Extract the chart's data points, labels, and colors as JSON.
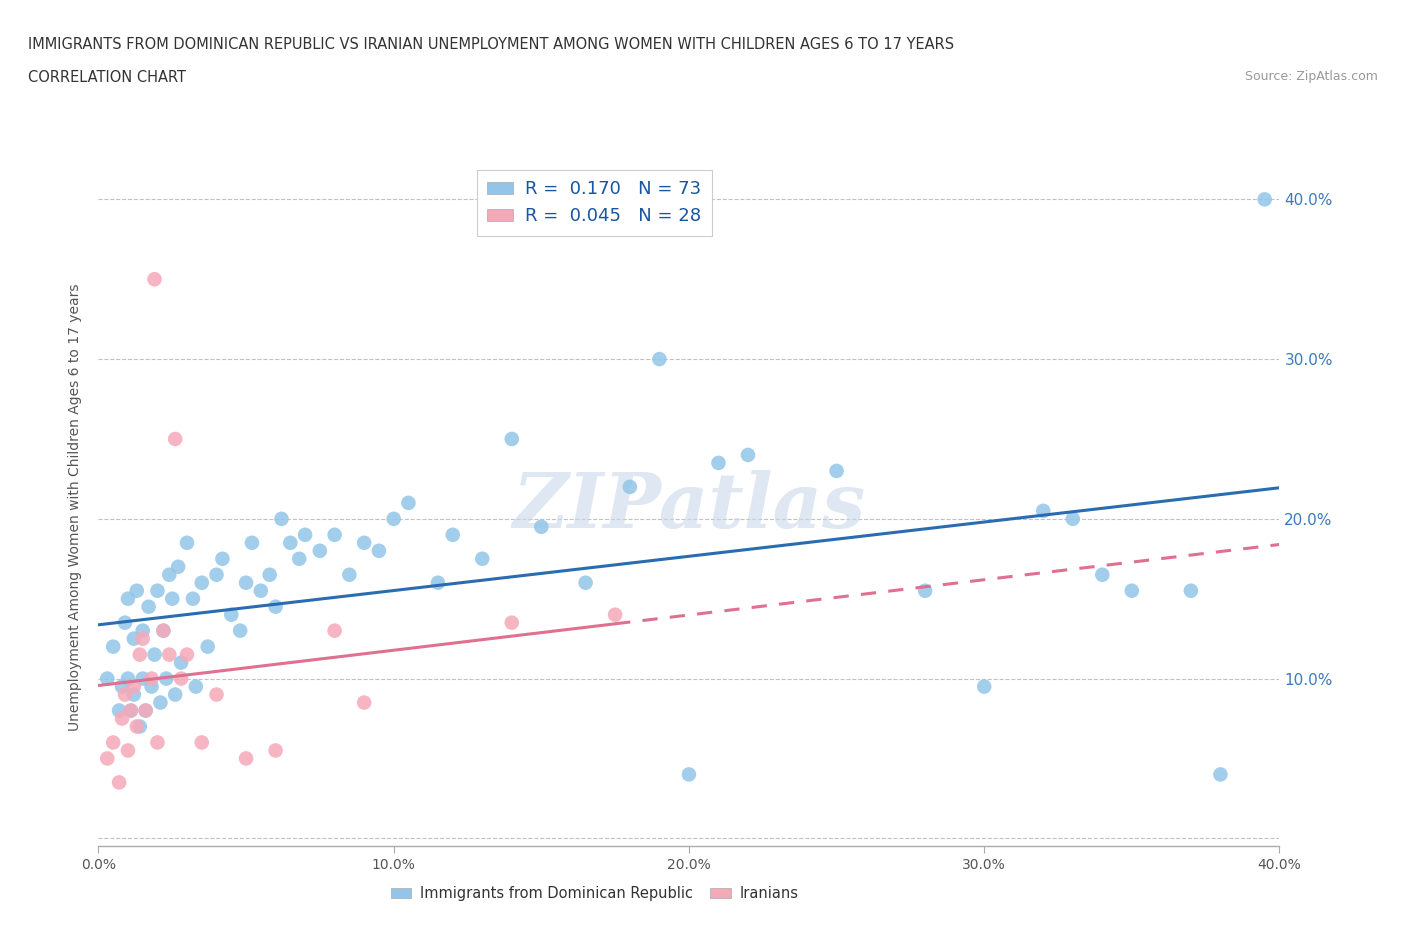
{
  "title_line1": "IMMIGRANTS FROM DOMINICAN REPUBLIC VS IRANIAN UNEMPLOYMENT AMONG WOMEN WITH CHILDREN AGES 6 TO 17 YEARS",
  "title_line2": "CORRELATION CHART",
  "source": "Source: ZipAtlas.com",
  "ylabel": "Unemployment Among Women with Children Ages 6 to 17 years",
  "xlim": [
    0.0,
    0.4
  ],
  "ylim": [
    -0.005,
    0.42
  ],
  "x_ticks": [
    0.0,
    0.1,
    0.2,
    0.3,
    0.4
  ],
  "x_tick_labels": [
    "0.0%",
    "10.0%",
    "20.0%",
    "30.0%",
    "40.0%"
  ],
  "y_ticks": [
    0.0,
    0.1,
    0.2,
    0.3,
    0.4
  ],
  "y_tick_labels_right": [
    "",
    "10.0%",
    "20.0%",
    "30.0%",
    "40.0%"
  ],
  "watermark": "ZIPatlas",
  "R_blue": 0.17,
  "N_blue": 73,
  "R_pink": 0.045,
  "N_pink": 28,
  "blue_color": "#92c5e8",
  "pink_color": "#f5a8b8",
  "line_blue": "#2b6cb0",
  "line_pink": "#e07090",
  "legend_label_blue": "Immigrants from Dominican Republic",
  "legend_label_pink": "Iranians",
  "blue_scatter_x": [
    0.003,
    0.005,
    0.007,
    0.008,
    0.009,
    0.01,
    0.01,
    0.011,
    0.012,
    0.012,
    0.013,
    0.014,
    0.015,
    0.015,
    0.016,
    0.017,
    0.018,
    0.019,
    0.02,
    0.021,
    0.022,
    0.023,
    0.024,
    0.025,
    0.026,
    0.027,
    0.028,
    0.03,
    0.032,
    0.033,
    0.035,
    0.037,
    0.04,
    0.042,
    0.045,
    0.048,
    0.05,
    0.052,
    0.055,
    0.058,
    0.06,
    0.062,
    0.065,
    0.068,
    0.07,
    0.075,
    0.08,
    0.085,
    0.09,
    0.095,
    0.1,
    0.105,
    0.115,
    0.12,
    0.13,
    0.14,
    0.15,
    0.165,
    0.18,
    0.19,
    0.2,
    0.21,
    0.22,
    0.25,
    0.28,
    0.3,
    0.32,
    0.33,
    0.34,
    0.35,
    0.37,
    0.38,
    0.395
  ],
  "blue_scatter_y": [
    0.1,
    0.12,
    0.08,
    0.095,
    0.135,
    0.1,
    0.15,
    0.08,
    0.09,
    0.125,
    0.155,
    0.07,
    0.13,
    0.1,
    0.08,
    0.145,
    0.095,
    0.115,
    0.155,
    0.085,
    0.13,
    0.1,
    0.165,
    0.15,
    0.09,
    0.17,
    0.11,
    0.185,
    0.15,
    0.095,
    0.16,
    0.12,
    0.165,
    0.175,
    0.14,
    0.13,
    0.16,
    0.185,
    0.155,
    0.165,
    0.145,
    0.2,
    0.185,
    0.175,
    0.19,
    0.18,
    0.19,
    0.165,
    0.185,
    0.18,
    0.2,
    0.21,
    0.16,
    0.19,
    0.175,
    0.25,
    0.195,
    0.16,
    0.22,
    0.3,
    0.04,
    0.235,
    0.24,
    0.23,
    0.155,
    0.095,
    0.205,
    0.2,
    0.165,
    0.155,
    0.155,
    0.04,
    0.4
  ],
  "pink_scatter_x": [
    0.003,
    0.005,
    0.007,
    0.008,
    0.009,
    0.01,
    0.011,
    0.012,
    0.013,
    0.014,
    0.015,
    0.016,
    0.018,
    0.019,
    0.02,
    0.022,
    0.024,
    0.026,
    0.028,
    0.03,
    0.035,
    0.04,
    0.05,
    0.06,
    0.08,
    0.09,
    0.14,
    0.175
  ],
  "pink_scatter_y": [
    0.05,
    0.06,
    0.035,
    0.075,
    0.09,
    0.055,
    0.08,
    0.095,
    0.07,
    0.115,
    0.125,
    0.08,
    0.1,
    0.35,
    0.06,
    0.13,
    0.115,
    0.25,
    0.1,
    0.115,
    0.06,
    0.09,
    0.05,
    0.055,
    0.13,
    0.085,
    0.135,
    0.14
  ]
}
